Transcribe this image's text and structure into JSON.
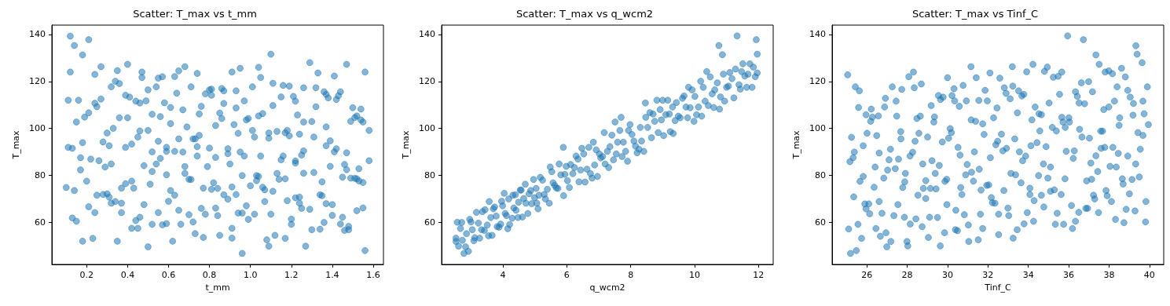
{
  "chart_data": [
    {
      "type": "scatter",
      "title": "Scatter: T_max vs t_mm",
      "xlabel": "t_mm",
      "ylabel": "T_max",
      "marker": "circle",
      "grid": false,
      "xlim": [
        0.03,
        1.65
      ],
      "xticks": [
        0.2,
        0.4,
        0.6,
        0.8,
        {
          "value": 1,
          "label": "1.0"
        },
        1.2,
        1.4,
        1.6
      ],
      "ylim": [
        42,
        144
      ],
      "yticks": [
        60,
        80,
        100,
        120,
        140
      ],
      "series": [
        {
          "color": "#1f77b4",
          "x": [
            0.12,
            0.14,
            0.18,
            0.21,
            0.12,
            0.11,
            0.16,
            0.1,
            0.11,
            0.13,
            0.15,
            0.18,
            0.17,
            0.17,
            0.2,
            0.14,
            0.13,
            0.15,
            0.18,
            0.21,
            0.23,
            0.24,
            0.22,
            0.19,
            0.21,
            0.24,
            0.24,
            0.25,
            0.27,
            0.27,
            0.25,
            0.26,
            0.28,
            0.29,
            0.28,
            0.3,
            0.3,
            0.31,
            0.32,
            0.34,
            0.36,
            0.35,
            0.33,
            0.32,
            0.31,
            0.32,
            0.34,
            0.35,
            0.37,
            0.37,
            0.37,
            0.36,
            0.39,
            0.4,
            0.4,
            0.41,
            0.39,
            0.42,
            0.39,
            0.42,
            0.43,
            0.42,
            0.44,
            0.45,
            0.46,
            0.45,
            0.46,
            0.44,
            0.46,
            0.47,
            0.47,
            0.49,
            0.5,
            0.5,
            0.48,
            0.48,
            0.5,
            0.52,
            0.51,
            0.52,
            0.52,
            0.52,
            0.54,
            0.55,
            0.57,
            0.56,
            0.55,
            0.56,
            0.54,
            0.55,
            0.57,
            0.59,
            0.59,
            0.59,
            0.59,
            0.58,
            0.61,
            0.61,
            0.63,
            0.65,
            0.64,
            0.63,
            0.6,
            0.61,
            0.63,
            0.62,
            0.65,
            0.66,
            0.65,
            0.67,
            0.67,
            0.68,
            0.71,
            0.69,
            0.68,
            0.68,
            0.7,
            0.71,
            0.7,
            0.72,
            0.73,
            0.72,
            0.73,
            0.74,
            0.74,
            0.75,
            0.74,
            0.76,
            0.75,
            0.77,
            0.76,
            0.78,
            0.77,
            0.79,
            0.8,
            0.78,
            0.8,
            0.81,
            0.81,
            0.81,
            0.82,
            0.84,
            0.83,
            0.84,
            0.85,
            0.83,
            0.83,
            0.85,
            0.86,
            0.86,
            0.87,
            0.87,
            0.87,
            0.89,
            0.89,
            0.89,
            0.9,
            0.91,
            0.93,
            0.91,
            0.91,
            0.94,
            0.96,
            0.98,
            0.96,
            0.99,
            1.02,
            0.96,
            0.95,
            0.97,
            0.94,
            0.92,
            0.93,
            0.93,
            0.91,
            0.95,
            0.97,
            0.98,
            0.99,
            1.01,
            1.04,
            1.05,
            1.01,
            1.02,
            1.04,
            1.06,
            1.05,
            1.0,
            1.03,
            1.03,
            1.04,
            1.06,
            1.07,
            1.07,
            1.1,
            1.08,
            1.09,
            1.12,
            1.17,
            1.11,
            1.13,
            1.14,
            1.17,
            1.15,
            1.16,
            1.18,
            1.2,
            1.2,
            1.09,
            1.09,
            1.13,
            1.17,
            1.18,
            1.19,
            1.1,
            1.11,
            1.11,
            1.16,
            1.15,
            1.19,
            1.21,
            1.22,
            1.23,
            1.24,
            1.26,
            1.26,
            1.29,
            1.3,
            1.31,
            1.33,
            1.32,
            1.32,
            1.22,
            1.22,
            1.25,
            1.26,
            1.26,
            1.31,
            1.22,
            1.24,
            1.24,
            1.25,
            1.29,
            1.27,
            1.3,
            1.34,
            1.34,
            1.35,
            1.35,
            1.37,
            1.36,
            1.37,
            1.37,
            1.39,
            1.39,
            1.36,
            1.37,
            1.38,
            1.41,
            1.42,
            1.43,
            1.44,
            1.41,
            1.42,
            1.4,
            1.4,
            1.44,
            1.45,
            1.46,
            1.48,
            1.48,
            1.45,
            1.47,
            1.46,
            1.47,
            1.47,
            1.49,
            1.5,
            1.51,
            1.52,
            1.54,
            1.55,
            1.54,
            1.56,
            1.58,
            1.58,
            1.53,
            1.49,
            1.51,
            1.52,
            1.53,
            1.55,
            1.52,
            1.55,
            1.56
          ],
          "values": [
            139.3,
            135.3,
            131.3,
            137.8,
            124,
            112,
            112,
            74.8,
            91.9,
            91.5,
            102.7,
            93.9,
            87.5,
            82.3,
            77.5,
            73.5,
            61.8,
            60.4,
            51.9,
            66.6,
            53.1,
            64.1,
            86.9,
            104.8,
            106.6,
            110.7,
            123,
            109.2,
            112.5,
            126.3,
            71.5,
            86.2,
            94.2,
            83.5,
            71.8,
            72.1,
            98,
            92.6,
            117.7,
            120.1,
            119.1,
            124.6,
            100,
            84.8,
            70.7,
            68.1,
            68.8,
            51.9,
            74.5,
            68.1,
            64.1,
            104.5,
            114.1,
            127.3,
            104.5,
            113.3,
            91.9,
            93.3,
            76.4,
            77.5,
            74.5,
            57.4,
            60.7,
            57.4,
            62.1,
            96.3,
            98.9,
            111.6,
            110.8,
            121.7,
            124,
            111.7,
            116.4,
            99.1,
            84.1,
            67.5,
            49.5,
            59.1,
            76.2,
            81.6,
            90,
            106,
            117.7,
            121.4,
            122,
            105,
            94.5,
            87.2,
            84.8,
            64.1,
            58.9,
            59.4,
            80.2,
            91.9,
            90.2,
            110.9,
            108.9,
            102,
            122.1,
            124.5,
            115,
            90.2,
            68.9,
            73.5,
            71.5,
            51.9,
            65.1,
            59.1,
            95.5,
            89.9,
            107.9,
            126.3,
            117.7,
            100.6,
            83.7,
            80.8,
            78.3,
            78.2,
            63.2,
            60.1,
            55.1,
            95.5,
            95.5,
            92.2,
            88.2,
            97,
            123.4,
            109.4,
            106.1,
            74.5,
            65.9,
            63.4,
            53.5,
            83.7,
            91.6,
            114.7,
            116.4,
            116.7,
            114.1,
            74,
            76.8,
            74.4,
            66,
            62.8,
            54.4,
            87.6,
            101.2,
            106.5,
            104.2,
            117,
            116,
            110.6,
            71.7,
            69.8,
            89.2,
            91.3,
            84.8,
            75,
            71.8,
            57.4,
            53.2,
            63.9,
            63.9,
            67,
            46.7,
            61.2,
            63.4,
            79.9,
            89.9,
            88.2,
            97.9,
            101.6,
            108.7,
            116,
            124,
            125.6,
            111.7,
            103.6,
            104.2,
            117.7,
            126,
            121.7,
            99.1,
            96.3,
            105.3,
            106.3,
            88.2,
            75.5,
            77.7,
            79.9,
            79.5,
            74.9,
            73.8,
            68.8,
            63.4,
            52.5,
            49.8,
            54.4,
            53.1,
            73.2,
            80.8,
            78.3,
            78.5,
            86.6,
            88.2,
            69.2,
            61.3,
            59.1,
            95.8,
            98,
            98.7,
            98.1,
            99.1,
            96.8,
            131.6,
            119.2,
            109.7,
            118.3,
            113.4,
            118,
            113.6,
            111.6,
            105.7,
            97.5,
            117.3,
            102.7,
            128,
            102.9,
            96.3,
            123.6,
            117.3,
            109.2,
            86.1,
            85.2,
            88.6,
            90.4,
            80.9,
            81.2,
            70.4,
            70.7,
            68.1,
            65.9,
            65.5,
            49.8,
            56.8,
            57,
            71.7,
            71.3,
            77.2,
            67.9,
            59.9,
            100.6,
            92.6,
            94.7,
            83.8,
            115.6,
            114.5,
            113,
            122.3,
            112.3,
            113.9,
            115.6,
            90,
            91.3,
            62.9,
            67.5,
            59.2,
            62.1,
            56.5,
            58.2,
            56.8,
            79.2,
            82.4,
            84.6,
            89.6,
            127.3,
            103,
            108.8,
            104.6,
            105.3,
            103.6,
            102.7,
            108.2,
            124,
            99.1,
            86.2,
            82.8,
            78.8,
            78.7,
            78.5,
            77.6,
            76.9,
            64.9,
            66.1,
            47.9
          ]
        }
      ]
    },
    {
      "type": "scatter",
      "title": "Scatter: T_max vs q_wcm2",
      "xlabel": "q_wcm2",
      "ylabel": "T_max",
      "marker": "circle",
      "grid": false,
      "xlim": [
        2.08,
        12.46
      ],
      "xticks": [
        4,
        6,
        8,
        10,
        12
      ],
      "ylim": [
        42,
        144
      ],
      "yticks": [
        60,
        80,
        100,
        120,
        140
      ],
      "series": [
        {
          "color": "#1f77b4",
          "x": [
            2.53,
            2.53,
            2.57,
            2.61,
            2.67,
            2.71,
            2.73,
            2.78,
            2.83,
            2.86,
            2.92,
            2.96,
            3.0,
            3.04,
            3.09,
            3.12,
            3.17,
            3.23,
            3.27,
            3.33,
            3.36,
            3.42,
            3.44,
            3.51,
            3.55,
            3.57,
            3.62,
            3.66,
            3.7,
            3.74,
            3.79,
            3.82,
            3.88,
            3.93,
            3.96,
            3.99,
            4.04,
            4.07,
            4.11,
            4.15,
            4.18,
            4.21,
            4.29,
            4.31,
            4.34,
            4.39,
            4.41,
            4.47,
            4.49,
            4.54,
            4.57,
            4.61,
            4.65,
            4.7,
            4.72,
            4.78,
            4.82,
            4.87,
            4.9,
            4.96,
            4.99,
            5.04,
            5.06,
            5.1,
            5.13,
            5.17,
            5.24,
            5.29,
            5.33,
            5.39,
            5.45,
            5.48,
            5.53,
            5.57,
            5.62,
            5.67,
            5.72,
            5.76,
            5.81,
            5.89,
            5.9,
            5.94,
            5.98,
            6.02,
            6.08,
            6.12,
            6.19,
            6.24,
            6.29,
            6.35,
            6.38,
            6.43,
            6.47,
            6.53,
            6.57,
            6.63,
            6.69,
            6.74,
            6.79,
            6.83,
            6.87,
            6.92,
            6.96,
            7.02,
            7.06,
            7.12,
            7.17,
            7.2,
            7.27,
            7.31,
            7.35,
            7.41,
            7.46,
            7.51,
            7.55,
            7.59,
            7.66,
            7.7,
            7.73,
            7.77,
            7.84,
            7.9,
            7.93,
            7.98,
            8.04,
            8.1,
            8.15,
            8.2,
            8.26,
            8.3,
            8.34,
            8.41,
            8.46,
            8.47,
            8.53,
            8.6,
            8.65,
            8.7,
            8.75,
            8.82,
            8.86,
            8.92,
            8.96,
            9.0,
            9.03,
            9.1,
            9.16,
            9.21,
            9.24,
            9.31,
            9.33,
            9.39,
            9.43,
            9.49,
            9.55,
            9.62,
            9.67,
            9.73,
            9.78,
            9.81,
            9.86,
            9.92,
            9.98,
            10.01,
            10.06,
            10.12,
            10.19,
            10.22,
            10.27,
            10.33,
            10.38,
            10.43,
            10.49,
            10.55,
            10.6,
            10.63,
            10.71,
            10.76,
            10.78,
            10.81,
            10.87,
            10.9,
            10.94,
            11.0,
            11.06,
            11.1,
            11.17,
            11.23,
            11.28,
            11.33,
            11.39,
            11.43,
            11.47,
            11.51,
            11.57,
            11.63,
            11.67,
            11.73,
            11.8,
            11.84,
            11.9,
            11.93,
            11.96,
            11.96
          ],
          "values": [
            53.2,
            51.8,
            60,
            49.8,
            57.3,
            59.9,
            52.3,
            46.7,
            49.5,
            55.1,
            47.6,
            61.2,
            60.1,
            56.8,
            52.1,
            53.4,
            64.2,
            59.6,
            53.2,
            56.8,
            64.5,
            56.5,
            65.3,
            58.8,
            54.2,
            68.8,
            62,
            54.4,
            65.7,
            66.5,
            62.6,
            58.1,
            57.9,
            59.2,
            68.9,
            67,
            72.3,
            63.7,
            62.8,
            57.2,
            69.9,
            59,
            61.7,
            71.5,
            66.1,
            71.7,
            65.1,
            62,
            68.5,
            73.7,
            73.7,
            62.2,
            70.1,
            76.2,
            68.1,
            63.7,
            72.1,
            73.5,
            67.9,
            78.2,
            70.4,
            74.4,
            68.1,
            65.7,
            71.5,
            79.1,
            77.9,
            71.8,
            69.9,
            74,
            68.1,
            83.5,
            81.5,
            76.8,
            75.7,
            74.6,
            74.4,
            84.8,
            80.2,
            91.9,
            71.3,
            80.4,
            83.8,
            77.7,
            74.8,
            84.6,
            80.7,
            83.3,
            88.2,
            86.9,
            77.2,
            82.2,
            91.5,
            89.1,
            77.1,
            82.6,
            91.9,
            80.7,
            78.8,
            94.1,
            84.4,
            90.8,
            79.5,
            89.1,
            87.4,
            88,
            98.2,
            84.8,
            90.2,
            83.3,
            92.2,
            97.1,
            86.6,
            102.7,
            89.1,
            94.1,
            99.1,
            104.7,
            88,
            94.1,
            90.2,
            86,
            99.1,
            101.6,
            97.4,
            94.6,
            92.4,
            89.6,
            91.1,
            100.4,
            94.6,
            90.2,
            110.8,
            104.7,
            100.4,
            106.7,
            96,
            106.1,
            103,
            112,
            98.2,
            108,
            103.6,
            112,
            96.9,
            105.8,
            112,
            106.1,
            98.6,
            109.1,
            97.8,
            103.3,
            111,
            105.2,
            104.5,
            112.8,
            113.8,
            109.1,
            104.5,
            117.5,
            108.8,
            116.4,
            103,
            113.6,
            105.8,
            109.1,
            120.1,
            105.2,
            117.5,
            111.6,
            124.2,
            109.7,
            121.9,
            114.7,
            108.9,
            116.4,
            119.4,
            135.3,
            108.2,
            113.4,
            131.4,
            123.1,
            111.6,
            117.5,
            118,
            123.8,
            121.2,
            113,
            125.3,
            139.4,
            118.6,
            116.7,
            124.2,
            127.5,
            122.3,
            117.5,
            123.1,
            127.5,
            117.5,
            126.1,
            122,
            137.8,
            131.6,
            123.6
          ]
        }
      ]
    },
    {
      "type": "scatter",
      "title": "Scatter: T_max vs Tinf_C",
      "xlabel": "Tinf_C",
      "ylabel": "T_max",
      "marker": "circle",
      "grid": false,
      "xlim": [
        24.28,
        40.71
      ],
      "xticks": [
        26,
        28,
        30,
        32,
        34,
        36,
        38,
        40
      ],
      "ylim": [
        42,
        144
      ],
      "yticks": [
        60,
        80,
        100,
        120,
        140
      ],
      "series": [
        {
          "color": "#1f77b4",
          "x": [
            25.05,
            25.1,
            25.19,
            25.16,
            25.24,
            25.32,
            25.38,
            25.35,
            25.43,
            25.48,
            25.56,
            25.63,
            25.59,
            25.66,
            25.74,
            25.82,
            25.82,
            25.9,
            25.96,
            25.96,
            26.01,
            26.1,
            26.14,
            26.19,
            26.22,
            26.28,
            26.36,
            26.41,
            26.45,
            26.49,
            26.57,
            26.61,
            26.61,
            26.67,
            26.75,
            26.84,
            26.88,
            26.92,
            26.95,
            26.99,
            27.03,
            27.1,
            27.17,
            27.19,
            27.26,
            27.34,
            27.41,
            27.45,
            27.48,
            27.54,
            27.57,
            27.68,
            27.69,
            27.73,
            27.78,
            27.86,
            27.88,
            27.91,
            27.99,
            28.03,
            28.08,
            28.14,
            28.15,
            28.27,
            28.31,
            28.35,
            28.39,
            28.43,
            28.48,
            28.53,
            28.58,
            28.65,
            28.7,
            28.74,
            28.77,
            28.8,
            28.92,
            28.92,
            29.01,
            29.05,
            29.11,
            29.15,
            29.19,
            29.23,
            29.32,
            29.35,
            29.39,
            29.43,
            29.5,
            29.55,
            29.59,
            29.65,
            29.64,
            29.74,
            29.78,
            29.85,
            29.87,
            29.96,
            29.97,
            30.0,
            30.05,
            30.13,
            30.19,
            30.22,
            30.32,
            30.35,
            30.41,
            30.39,
            30.49,
            30.52,
            30.58,
            30.62,
            30.65,
            30.71,
            30.77,
            30.83,
            30.9,
            30.93,
            30.97,
            31.03,
            31.05,
            31.16,
            31.17,
            31.19,
            31.28,
            31.33,
            31.39,
            31.42,
            31.52,
            31.55,
            31.57,
            31.63,
            31.66,
            31.74,
            31.74,
            31.81,
            31.86,
            31.94,
            31.97,
            32.04,
            32.1,
            32.12,
            32.17,
            32.22,
            32.28,
            32.35,
            32.39,
            32.45,
            32.48,
            32.53,
            32.53,
            32.59,
            32.67,
            32.74,
            32.79,
            32.81,
            32.9,
            32.92,
            32.99,
            33.03,
            33.1,
            33.14,
            33.21,
            33.23,
            33.25,
            33.33,
            33.37,
            33.45,
            33.46,
            33.52,
            33.56,
            33.64,
            33.68,
            33.72,
            33.78,
            33.79,
            33.87,
            33.92,
            33.95,
            34.08,
            34.08,
            34.13,
            34.18,
            34.23,
            34.26,
            34.29,
            34.34,
            34.43,
            34.51,
            34.53,
            34.57,
            34.65,
            34.65,
            34.75,
            34.77,
            34.8,
            34.88,
            34.94,
            34.97,
            35.03,
            35.1,
            35.1,
            35.19,
            35.24,
            35.29,
            35.34,
            35.39,
            35.43,
            35.48,
            35.55,
            35.63,
            35.66,
            35.66,
            35.72,
            35.75,
            35.82,
            35.83,
            35.88,
            35.95,
            36.01,
            36.04,
            36.14,
            36.19,
            36.23,
            36.28,
            36.34,
            36.34,
            36.43,
            36.5,
            36.52,
            36.54,
            36.63,
            36.66,
            36.73,
            36.79,
            36.85,
            36.89,
            36.94,
            36.99,
            37.03,
            37.1,
            37.14,
            37.18,
            37.23,
            37.29,
            37.35,
            37.35,
            37.44,
            37.48,
            37.51,
            37.59,
            37.61,
            37.68,
            37.74,
            37.79,
            37.81,
            37.85,
            37.91,
            37.99,
            37.99,
            38.05,
            38.12,
            38.17,
            38.19,
            38.27,
            38.32,
            38.36,
            38.4,
            38.46,
            38.5,
            38.53,
            38.62,
            38.66,
            38.7,
            38.74,
            38.81,
            38.85,
            38.93,
            38.93,
            39.01,
            39.05,
            39.14,
            39.19,
            39.21,
            39.29,
            39.32,
            39.33,
            39.39,
            39.43,
            39.5,
            39.55,
            39.64,
            39.68,
            39.68,
            39.74,
            39.81,
            39.83,
            39.9,
            39.95
          ],
          "values": [
            122.8,
            57.1,
            46.7,
            85.8,
            96.2,
            87.5,
            89.9,
            70.8,
            117.7,
            47.9,
            59.1,
            116,
            108.9,
            77.4,
            53.1,
            92.6,
            79.5,
            67.8,
            65.7,
            105.8,
            97.9,
            67.8,
            63.6,
            103,
            108.2,
            104.8,
            74.9,
            83.5,
            57.3,
            96.9,
            105.3,
            89.5,
            68.8,
            54,
            63.8,
            78.8,
            109.1,
            112.8,
            55.5,
            49.5,
            82.2,
            86.6,
            91.1,
            51.8,
            117.7,
            62.8,
            82.8,
            111.6,
            105.2,
            67.5,
            86.9,
            98.6,
            95.5,
            116.6,
            74.8,
            62.1,
            77.2,
            80.8,
            51.8,
            49.9,
            122,
            88.2,
            59.2,
            89.8,
            124,
            117.3,
            94.5,
            61.4,
            104.2,
            71.5,
            97.9,
            105.2,
            118.9,
            58.1,
            84.8,
            74.4,
            77.7,
            70.1,
            96.3,
            53.5,
            62.1,
            74.4,
            109.7,
            86.2,
            102.7,
            104.9,
            80.8,
            74.2,
            62,
            114,
            84.2,
            112.3,
            49.9,
            94.2,
            113.3,
            55.5,
            77.4,
            78.3,
            67.5,
            121.6,
            95.8,
            99.9,
            98.2,
            114,
            116.9,
            111.7,
            65.1,
            56.8,
            56.4,
            91.9,
            109.4,
            88.6,
            74.8,
            71.8,
            118.3,
            63.2,
            80.2,
            111.7,
            84.6,
            58.8,
            51.8,
            126.3,
            103.6,
            81.3,
            77.5,
            90,
            103,
            121.6,
            52.5,
            111.9,
            82.6,
            63.4,
            73.7,
            57.3,
            101.9,
            97.4,
            116.2,
            75.7,
            111.7,
            75.9,
            123.6,
            87.5,
            70.5,
            68.3,
            104.5,
            68.1,
            93,
            108.7,
            94.5,
            54.7,
            63.4,
            121.4,
            97.5,
            90.4,
            73.5,
            117.3,
            114.9,
            91.5,
            66,
            62.8,
            112.6,
            80.8,
            126.3,
            118,
            53.2,
            95.5,
            80.2,
            56.8,
            106.6,
            116,
            90,
            76.8,
            113.8,
            86.2,
            114.5,
            59.3,
            88.2,
            124.1,
            64.1,
            74.5,
            71.8,
            92.6,
            103.6,
            127.3,
            60.4,
            69.2,
            109.1,
            93.9,
            79.9,
            106.2,
            98.9,
            105.8,
            71.5,
            84.8,
            66.5,
            124.3,
            92.2,
            126.1,
            78.8,
            110.8,
            83.5,
            73.2,
            100.4,
            121.8,
            73.8,
            59.1,
            98.9,
            63.8,
            122.2,
            114.5,
            71.8,
            124,
            104.7,
            102.7,
            59.1,
            78.5,
            100.4,
            90.2,
            139.4,
            104.5,
            102.7,
            67.1,
            57.3,
            87.2,
            90.4,
            115.6,
            60.4,
            113.6,
            64.2,
            110.8,
            99.6,
            119.4,
            96.3,
            137.8,
            110.5,
            65.9,
            77.6,
            65.9,
            119.9,
            95.8,
            85.2,
            78.3,
            115.6,
            71.5,
            69.9,
            88.3,
            131.3,
            81.6,
            64.1,
            127.3,
            98.8,
            91.5,
            98.8,
            108,
            91.9,
            124,
            73.5,
            71.3,
            109.1,
            124.5,
            83.8,
            68.8,
            123.3,
            91.9,
            111.6,
            61.2,
            83.5,
            117.7,
            89.3,
            101.3,
            104.5,
            125.6,
            78.5,
            76.3,
            59.8,
            121.9,
            65.5,
            88.2,
            116.2,
            72.1,
            113.3,
            78.2,
            105.6,
            110.6,
            64.8,
            84.8,
            135.2,
            131.6,
            98.2,
            79.3,
            91.1,
            128,
            97,
            111.6,
            106.2,
            60.1,
            68.8,
            117.7,
            101.6
          ]
        }
      ]
    }
  ]
}
